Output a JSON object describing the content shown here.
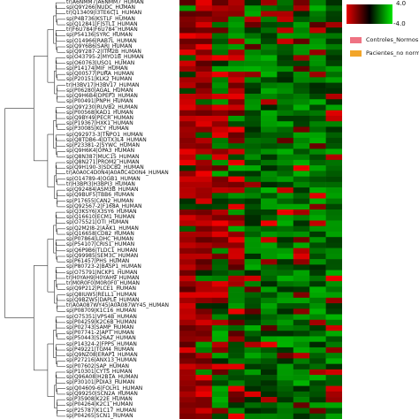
{
  "chart_data": {
    "type": "heatmap",
    "rows": [
      "tr|A6NMM7|A6NMM7_HUMAN",
      "sp|Q9Y266|NUDC_HUMAN",
      "tr|Q13409|I3TE6C|1_HUMAN",
      "sp|P4B736|KSTLF_HUMAN",
      "sp|Q12841|F|STL1_HUMAN",
      "tr|F6U784|F6U784_HUMAN",
      "sp|P54136|SYRC_HUMAN",
      "sp|O14966|RAB7L_HUMAN",
      "sp|Q9Y6B6|SARJ_HUMAN",
      "sp|Q9Y287-2|ITM2B_HUMAN",
      "sp|O43795-2|MYO1B_HUMAN",
      "sp|O60763|USO1_HUMAN",
      "sp|P14174|MIF_HUMAN",
      "sp|Q00577|PURA_HUMAN",
      "sp|P20151|KLK2_HUMAN",
      "tr|H3BV17|H3BV17_HUMAN",
      "sp|P06280|AGAL_HUMAN",
      "sp|Q9H6B4|DPEP3_HUMAN",
      "sp|P00491|PNPH_HUMAN",
      "sp|Q9Y230|RUVB2_HUMAN",
      "sp|P00568|KAD1_HUMAN",
      "sp|Q9BY49|PECR_HUMAN",
      "sp|P19367|HXK1_HUMAN",
      "sp|P30085|KCY_HUMAN",
      "sp|Q92973-3|TNPO1_HUMAN",
      "sp|Q8TDB6-4|DTX3L4_HUMAN",
      "sp|P23381-2|SYWC_HUMAN",
      "sp|Q9H6K4|OPA3_HUMAN",
      "sp|Q8N387|MUC15_HUMAN",
      "sp|Q8N271|PROM2_HUMAN",
      "sp|Q9H190-3|SDCB2_HUMAN",
      "tr|A0A0C4D0N4|A0A0C4D0N4_HUMAN",
      "sp|O14789-4|OGB1_HUMAN",
      "tr|H3BPI3|H3BPI3_HUMAN",
      "sp|Q92484|ASM3B_HUMAN",
      "sp|Q9BUF5|TBB6_HUMAN",
      "sp|P17655|CAN2_HUMAN",
      "sp|Q92567-2|F168A_HUMAN",
      "sp|Q3KSY6|X3SY6_HUMAN",
      "sp|Q16610|ECM1_HUMAN",
      "sp|O75521|OTI_HUMAN",
      "sp|Q2M2I8-2|AAK1_HUMAN",
      "sp|Q16658|CD82_HUMAN",
      "sp|P07864|LDHC_HUMAN",
      "sp|P54107|CRIS1_HUMAN",
      "sp|Q6P9B6|TLDC1_HUMAN",
      "sp|Q99985|SEM3C_HUMAN",
      "sp|P61457|PHS_HUMAN",
      "sp|P80723-2|BASP1_HUMAN",
      "sp|O75791|NCKP1_HUMAN",
      "tr|H0YAH9|H0YAH9_HUMAN",
      "tr|M0R0F0|M0R0F0_HUMAN",
      "sp|Q9P212|PLCE1_HUMAN",
      "sp|Q8IUW5|RELL1_HUMAN",
      "sp|Q9BZW5|DAPLE_HUMAN",
      "tr|A0A087WY45|A0A087WY45_HUMAN",
      "sp|P08709|K1C16_HUMAN",
      "sp|O75351|VPS4B_HUMAN",
      "sp|P04259|K2C6B_HUMAN",
      "sp|P02743|SAMP_HUMAN",
      "sp|P07741-2|APT_HUMAN",
      "sp|P50443|S26A2_HUMAN",
      "sp|P14324-2|FPPS_HUMAN",
      "sp|P49221|TGM4_HUMAN",
      "sp|Q9NZ08|ERAP1_HUMAN",
      "sp|P27216|ANX13_HUMAN",
      "sp|P07602|SAP_HUMAN",
      "sp|P10301|CYTS_HUMAN",
      "sp|Q96A08|H2B1A_HUMAN",
      "sp|P30101|PDIA3_HUMAN",
      "sp|Q04609-6|FOLH1_HUMAN",
      "sp|Q99250|SCN2A_HUMAN",
      "sp|P35908|K22E_HUMAN",
      "sp|P04264|K2C1_HUMAN",
      "sp|P25787|K1C17_HUMAN",
      "sp|P04265|SCN1_HUMAN"
    ],
    "color_key": {
      "max_label": "4.0",
      "min_label": "-4.0",
      "colors": [
        "#e60000",
        "#000000",
        "#00e600"
      ]
    },
    "legend": [
      {
        "label": "Controles_Normos",
        "color": "#ef7383"
      },
      {
        "label": "Pacientes_no normos",
        "color": "#f2a52a"
      }
    ]
  }
}
